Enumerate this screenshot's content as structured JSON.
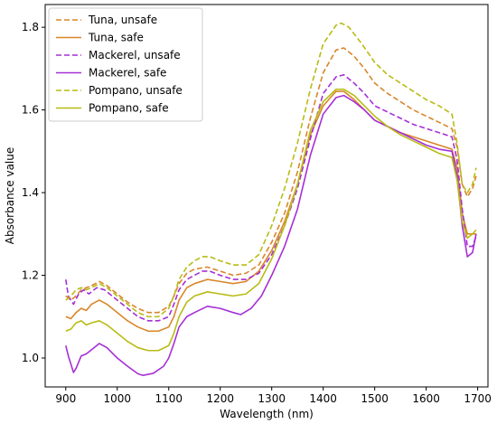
{
  "chart_data": {
    "type": "line",
    "title": "",
    "xlabel": "Wavelength (nm)",
    "ylabel": "Absorbance value",
    "xlim": [
      860,
      1720
    ],
    "ylim": [
      0.93,
      1.855
    ],
    "xticks": [
      900,
      1000,
      1100,
      1200,
      1300,
      1400,
      1500,
      1600,
      1700
    ],
    "yticks": [
      1.0,
      1.2,
      1.4,
      1.6,
      1.8
    ],
    "ytick_labels": [
      "1.0",
      "1.2",
      "1.4",
      "1.6",
      "1.8"
    ],
    "grid": false,
    "legend_position": "top-left",
    "series": [
      {
        "name": "Tuna, unsafe",
        "color": "#d9862a",
        "dashed": true,
        "points": [
          [
            900,
            1.15
          ],
          [
            910,
            1.14
          ],
          [
            920,
            1.15
          ],
          [
            930,
            1.165
          ],
          [
            940,
            1.17
          ],
          [
            950,
            1.175
          ],
          [
            965,
            1.185
          ],
          [
            980,
            1.175
          ],
          [
            1000,
            1.155
          ],
          [
            1020,
            1.135
          ],
          [
            1040,
            1.12
          ],
          [
            1060,
            1.11
          ],
          [
            1080,
            1.11
          ],
          [
            1100,
            1.125
          ],
          [
            1110,
            1.15
          ],
          [
            1120,
            1.18
          ],
          [
            1135,
            1.205
          ],
          [
            1150,
            1.215
          ],
          [
            1175,
            1.22
          ],
          [
            1200,
            1.21
          ],
          [
            1225,
            1.2
          ],
          [
            1250,
            1.205
          ],
          [
            1275,
            1.225
          ],
          [
            1300,
            1.28
          ],
          [
            1325,
            1.35
          ],
          [
            1350,
            1.45
          ],
          [
            1375,
            1.58
          ],
          [
            1400,
            1.69
          ],
          [
            1425,
            1.745
          ],
          [
            1440,
            1.75
          ],
          [
            1460,
            1.73
          ],
          [
            1480,
            1.7
          ],
          [
            1500,
            1.665
          ],
          [
            1525,
            1.64
          ],
          [
            1550,
            1.62
          ],
          [
            1575,
            1.6
          ],
          [
            1600,
            1.585
          ],
          [
            1625,
            1.57
          ],
          [
            1650,
            1.555
          ],
          [
            1660,
            1.51
          ],
          [
            1670,
            1.42
          ],
          [
            1680,
            1.39
          ],
          [
            1690,
            1.41
          ],
          [
            1697,
            1.44
          ]
        ]
      },
      {
        "name": "Tuna, safe",
        "color": "#d9862a",
        "dashed": false,
        "points": [
          [
            900,
            1.1
          ],
          [
            910,
            1.095
          ],
          [
            920,
            1.11
          ],
          [
            930,
            1.12
          ],
          [
            940,
            1.115
          ],
          [
            950,
            1.13
          ],
          [
            965,
            1.14
          ],
          [
            980,
            1.13
          ],
          [
            1000,
            1.11
          ],
          [
            1020,
            1.09
          ],
          [
            1040,
            1.075
          ],
          [
            1060,
            1.065
          ],
          [
            1080,
            1.065
          ],
          [
            1100,
            1.075
          ],
          [
            1110,
            1.1
          ],
          [
            1120,
            1.14
          ],
          [
            1135,
            1.17
          ],
          [
            1150,
            1.18
          ],
          [
            1175,
            1.19
          ],
          [
            1200,
            1.185
          ],
          [
            1225,
            1.18
          ],
          [
            1250,
            1.185
          ],
          [
            1275,
            1.21
          ],
          [
            1300,
            1.26
          ],
          [
            1325,
            1.33
          ],
          [
            1350,
            1.42
          ],
          [
            1375,
            1.54
          ],
          [
            1400,
            1.61
          ],
          [
            1425,
            1.645
          ],
          [
            1440,
            1.645
          ],
          [
            1460,
            1.625
          ],
          [
            1480,
            1.6
          ],
          [
            1500,
            1.575
          ],
          [
            1525,
            1.56
          ],
          [
            1550,
            1.545
          ],
          [
            1575,
            1.535
          ],
          [
            1600,
            1.525
          ],
          [
            1625,
            1.515
          ],
          [
            1650,
            1.505
          ],
          [
            1660,
            1.46
          ],
          [
            1670,
            1.35
          ],
          [
            1680,
            1.3
          ],
          [
            1690,
            1.3
          ],
          [
            1697,
            1.3
          ]
        ]
      },
      {
        "name": "Mackerel, unsafe",
        "color": "#a62fd6",
        "dashed": true,
        "points": [
          [
            900,
            1.19
          ],
          [
            905,
            1.15
          ],
          [
            915,
            1.13
          ],
          [
            925,
            1.155
          ],
          [
            935,
            1.165
          ],
          [
            945,
            1.155
          ],
          [
            960,
            1.17
          ],
          [
            975,
            1.165
          ],
          [
            1000,
            1.14
          ],
          [
            1020,
            1.12
          ],
          [
            1040,
            1.1
          ],
          [
            1060,
            1.09
          ],
          [
            1080,
            1.09
          ],
          [
            1100,
            1.1
          ],
          [
            1110,
            1.13
          ],
          [
            1120,
            1.165
          ],
          [
            1135,
            1.19
          ],
          [
            1150,
            1.2
          ],
          [
            1165,
            1.21
          ],
          [
            1180,
            1.21
          ],
          [
            1200,
            1.2
          ],
          [
            1225,
            1.19
          ],
          [
            1250,
            1.19
          ],
          [
            1275,
            1.205
          ],
          [
            1300,
            1.25
          ],
          [
            1325,
            1.32
          ],
          [
            1350,
            1.41
          ],
          [
            1375,
            1.53
          ],
          [
            1400,
            1.64
          ],
          [
            1425,
            1.68
          ],
          [
            1440,
            1.685
          ],
          [
            1460,
            1.665
          ],
          [
            1480,
            1.64
          ],
          [
            1500,
            1.61
          ],
          [
            1525,
            1.595
          ],
          [
            1550,
            1.58
          ],
          [
            1575,
            1.565
          ],
          [
            1600,
            1.555
          ],
          [
            1625,
            1.545
          ],
          [
            1650,
            1.535
          ],
          [
            1660,
            1.48
          ],
          [
            1670,
            1.36
          ],
          [
            1680,
            1.27
          ],
          [
            1690,
            1.27
          ],
          [
            1697,
            1.295
          ]
        ]
      },
      {
        "name": "Mackerel, safe",
        "color": "#a62fd6",
        "dashed": false,
        "points": [
          [
            900,
            1.03
          ],
          [
            905,
            1.005
          ],
          [
            910,
            0.985
          ],
          [
            915,
            0.965
          ],
          [
            920,
            0.975
          ],
          [
            930,
            1.005
          ],
          [
            940,
            1.01
          ],
          [
            950,
            1.02
          ],
          [
            965,
            1.035
          ],
          [
            980,
            1.025
          ],
          [
            1000,
            1.0
          ],
          [
            1020,
            0.98
          ],
          [
            1040,
            0.962
          ],
          [
            1050,
            0.958
          ],
          [
            1070,
            0.963
          ],
          [
            1090,
            0.98
          ],
          [
            1100,
            1.0
          ],
          [
            1110,
            1.035
          ],
          [
            1120,
            1.075
          ],
          [
            1135,
            1.1
          ],
          [
            1150,
            1.11
          ],
          [
            1175,
            1.125
          ],
          [
            1200,
            1.12
          ],
          [
            1225,
            1.11
          ],
          [
            1240,
            1.105
          ],
          [
            1260,
            1.12
          ],
          [
            1280,
            1.15
          ],
          [
            1300,
            1.2
          ],
          [
            1325,
            1.27
          ],
          [
            1350,
            1.36
          ],
          [
            1375,
            1.49
          ],
          [
            1400,
            1.59
          ],
          [
            1425,
            1.63
          ],
          [
            1440,
            1.635
          ],
          [
            1460,
            1.62
          ],
          [
            1480,
            1.6
          ],
          [
            1500,
            1.575
          ],
          [
            1525,
            1.56
          ],
          [
            1550,
            1.545
          ],
          [
            1575,
            1.53
          ],
          [
            1600,
            1.515
          ],
          [
            1625,
            1.505
          ],
          [
            1650,
            1.5
          ],
          [
            1660,
            1.44
          ],
          [
            1670,
            1.32
          ],
          [
            1680,
            1.245
          ],
          [
            1690,
            1.255
          ],
          [
            1697,
            1.3
          ]
        ]
      },
      {
        "name": "Pompano, unsafe",
        "color": "#b8bc14",
        "dashed": true,
        "points": [
          [
            900,
            1.14
          ],
          [
            910,
            1.15
          ],
          [
            920,
            1.165
          ],
          [
            930,
            1.17
          ],
          [
            940,
            1.165
          ],
          [
            950,
            1.17
          ],
          [
            965,
            1.18
          ],
          [
            980,
            1.17
          ],
          [
            1000,
            1.15
          ],
          [
            1020,
            1.13
          ],
          [
            1040,
            1.11
          ],
          [
            1060,
            1.1
          ],
          [
            1080,
            1.1
          ],
          [
            1100,
            1.12
          ],
          [
            1110,
            1.15
          ],
          [
            1120,
            1.19
          ],
          [
            1135,
            1.22
          ],
          [
            1150,
            1.235
          ],
          [
            1165,
            1.245
          ],
          [
            1180,
            1.245
          ],
          [
            1200,
            1.235
          ],
          [
            1225,
            1.225
          ],
          [
            1250,
            1.225
          ],
          [
            1275,
            1.25
          ],
          [
            1300,
            1.32
          ],
          [
            1325,
            1.41
          ],
          [
            1350,
            1.52
          ],
          [
            1375,
            1.65
          ],
          [
            1400,
            1.76
          ],
          [
            1425,
            1.805
          ],
          [
            1435,
            1.81
          ],
          [
            1450,
            1.8
          ],
          [
            1475,
            1.76
          ],
          [
            1500,
            1.715
          ],
          [
            1525,
            1.685
          ],
          [
            1550,
            1.665
          ],
          [
            1575,
            1.645
          ],
          [
            1600,
            1.625
          ],
          [
            1625,
            1.61
          ],
          [
            1650,
            1.59
          ],
          [
            1660,
            1.52
          ],
          [
            1670,
            1.42
          ],
          [
            1680,
            1.4
          ],
          [
            1690,
            1.42
          ],
          [
            1697,
            1.46
          ]
        ]
      },
      {
        "name": "Pompano, safe",
        "color": "#b8bc14",
        "dashed": false,
        "points": [
          [
            900,
            1.065
          ],
          [
            910,
            1.07
          ],
          [
            920,
            1.085
          ],
          [
            930,
            1.09
          ],
          [
            940,
            1.08
          ],
          [
            950,
            1.085
          ],
          [
            965,
            1.09
          ],
          [
            980,
            1.08
          ],
          [
            1000,
            1.06
          ],
          [
            1020,
            1.04
          ],
          [
            1040,
            1.025
          ],
          [
            1060,
            1.018
          ],
          [
            1080,
            1.018
          ],
          [
            1100,
            1.03
          ],
          [
            1110,
            1.06
          ],
          [
            1120,
            1.1
          ],
          [
            1135,
            1.135
          ],
          [
            1150,
            1.15
          ],
          [
            1175,
            1.16
          ],
          [
            1200,
            1.155
          ],
          [
            1225,
            1.15
          ],
          [
            1250,
            1.155
          ],
          [
            1275,
            1.18
          ],
          [
            1300,
            1.24
          ],
          [
            1325,
            1.32
          ],
          [
            1350,
            1.42
          ],
          [
            1375,
            1.55
          ],
          [
            1400,
            1.62
          ],
          [
            1425,
            1.65
          ],
          [
            1440,
            1.65
          ],
          [
            1460,
            1.635
          ],
          [
            1480,
            1.61
          ],
          [
            1500,
            1.585
          ],
          [
            1525,
            1.56
          ],
          [
            1550,
            1.54
          ],
          [
            1575,
            1.525
          ],
          [
            1600,
            1.51
          ],
          [
            1625,
            1.495
          ],
          [
            1650,
            1.485
          ],
          [
            1660,
            1.43
          ],
          [
            1670,
            1.33
          ],
          [
            1680,
            1.29
          ],
          [
            1690,
            1.3
          ],
          [
            1697,
            1.31
          ]
        ]
      }
    ]
  }
}
